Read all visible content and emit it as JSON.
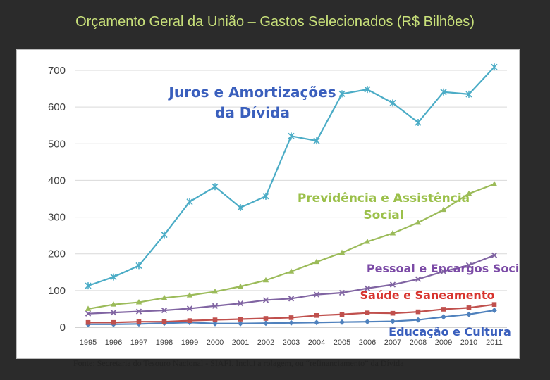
{
  "title": "Orçamento Geral da União – Gastos Selecionados (R$ Bilhões)",
  "source_note": "Fonte: Secretaria do Tesouro Nacional - SIAFI. Inclui a rolagem, ou “refinanciamento” da Dívida",
  "chart_data": {
    "type": "line",
    "categories": [
      "1995",
      "1996",
      "1997",
      "1998",
      "1999",
      "2000",
      "2001",
      "2002",
      "2003",
      "2004",
      "2005",
      "2006",
      "2007",
      "2008",
      "2009",
      "2010",
      "2011"
    ],
    "ylim": [
      0,
      700
    ],
    "yticks": [
      0,
      100,
      200,
      300,
      400,
      500,
      600,
      700
    ],
    "grid": true,
    "series": [
      {
        "name_lines": [
          "Juros e Amortizações",
          "da Dívida"
        ],
        "color": "#4bacc6",
        "label_color": "#3a5fbd",
        "marker": "star",
        "values": [
          113,
          137,
          168,
          252,
          342,
          383,
          326,
          357,
          521,
          508,
          636,
          648,
          611,
          558,
          641,
          635,
          709
        ]
      },
      {
        "name_lines": [
          "Previdência e Assistência",
          "Social"
        ],
        "color": "#9bbb59",
        "label_color": "#9bc04a",
        "marker": "triangle",
        "values": [
          50,
          62,
          68,
          80,
          87,
          97,
          111,
          128,
          152,
          178,
          203,
          233,
          256,
          285,
          320,
          364,
          390
        ]
      },
      {
        "name_lines": [
          "Pessoal e Encargos Sociais"
        ],
        "color": "#8064a2",
        "label_color": "#7b4aa6",
        "marker": "x",
        "values": [
          37,
          40,
          43,
          46,
          51,
          58,
          65,
          74,
          78,
          89,
          94,
          106,
          116,
          131,
          152,
          169,
          196
        ]
      },
      {
        "name_lines": [
          "Saúde e Saneamento"
        ],
        "color": "#c0504d",
        "label_color": "#d8342e",
        "marker": "square",
        "values": [
          13,
          13,
          15,
          15,
          18,
          20,
          22,
          24,
          26,
          32,
          35,
          39,
          38,
          42,
          49,
          53,
          62
        ]
      },
      {
        "name_lines": [
          "Educação e Cultura"
        ],
        "color": "#4f81bd",
        "label_color": "#3a5fbd",
        "marker": "diamond",
        "values": [
          8,
          8,
          9,
          11,
          13,
          10,
          10,
          11,
          12,
          13,
          14,
          15,
          16,
          20,
          28,
          35,
          46
        ]
      }
    ]
  }
}
